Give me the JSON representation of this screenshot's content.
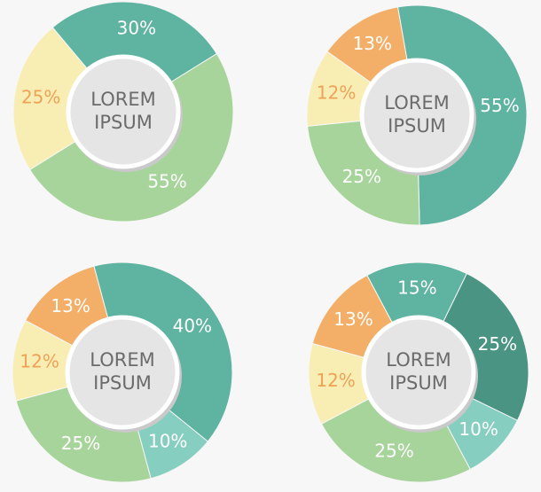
{
  "chart_data": [
    {
      "type": "pie",
      "center_label": [
        "LOREM",
        "IPSUM"
      ],
      "values": [
        30,
        55,
        25
      ],
      "value_labels": [
        "30%",
        "55%",
        "25%"
      ],
      "colors": [
        "#5fb3a1",
        "#a6d49a",
        "#f8eeb3"
      ],
      "label_colors": [
        "#ffffff",
        "#ffffff",
        "#eea257"
      ]
    },
    {
      "type": "pie",
      "center_label": [
        "LOREM",
        "IPSUM"
      ],
      "values": [
        55,
        25,
        12,
        13
      ],
      "value_labels": [
        "55%",
        "25%",
        "12%",
        "13%"
      ],
      "colors": [
        "#5fb3a1",
        "#a6d49a",
        "#f8eeb3",
        "#f3ae68"
      ],
      "label_colors": [
        "#ffffff",
        "#ffffff",
        "#eea257",
        "#ffffff"
      ]
    },
    {
      "type": "pie",
      "center_label": [
        "LOREM",
        "IPSUM"
      ],
      "values": [
        40,
        10,
        25,
        12,
        13
      ],
      "value_labels": [
        "40%",
        "10%",
        "25%",
        "12%",
        "13%"
      ],
      "colors": [
        "#5fb3a1",
        "#86cfc0",
        "#a6d49a",
        "#f8eeb3",
        "#f3ae68"
      ],
      "label_colors": [
        "#ffffff",
        "#ffffff",
        "#ffffff",
        "#eea257",
        "#ffffff"
      ]
    },
    {
      "type": "pie",
      "center_label": [
        "LOREM",
        "IPSUM"
      ],
      "values": [
        15,
        25,
        10,
        25,
        12,
        13
      ],
      "value_labels": [
        "15%",
        "25%",
        "10%",
        "25%",
        "12%",
        "13%"
      ],
      "colors": [
        "#5fb3a1",
        "#4a9484",
        "#86cfc0",
        "#a6d49a",
        "#f8eeb3",
        "#f3ae68"
      ],
      "label_colors": [
        "#ffffff",
        "#ffffff",
        "#ffffff",
        "#ffffff",
        "#eea257",
        "#ffffff"
      ]
    }
  ]
}
